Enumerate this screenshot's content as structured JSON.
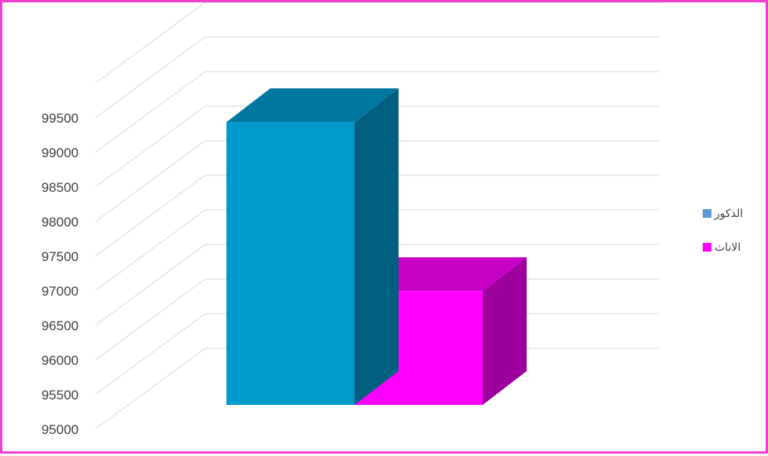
{
  "chart_data": {
    "type": "bar",
    "variant": "3d-column",
    "title": "",
    "xlabel": "",
    "ylabel": "",
    "categories": [
      "الذكور",
      "الاناث"
    ],
    "values": [
      99410,
      96775
    ],
    "colors": [
      "#0099cc",
      "#ff00ff"
    ],
    "ylim": [
      95000,
      99500
    ],
    "yticks": [
      95000,
      95500,
      96000,
      96500,
      97000,
      97500,
      98000,
      98500,
      99000,
      99500
    ],
    "grid": true,
    "legend": {
      "placement": "right",
      "entries": [
        {
          "label": "الذكور",
          "color": "#5b9bd5"
        },
        {
          "label": "الاناث",
          "color": "#ff00ff"
        }
      ]
    }
  },
  "frame": {
    "border_color": "#f23fd2"
  }
}
